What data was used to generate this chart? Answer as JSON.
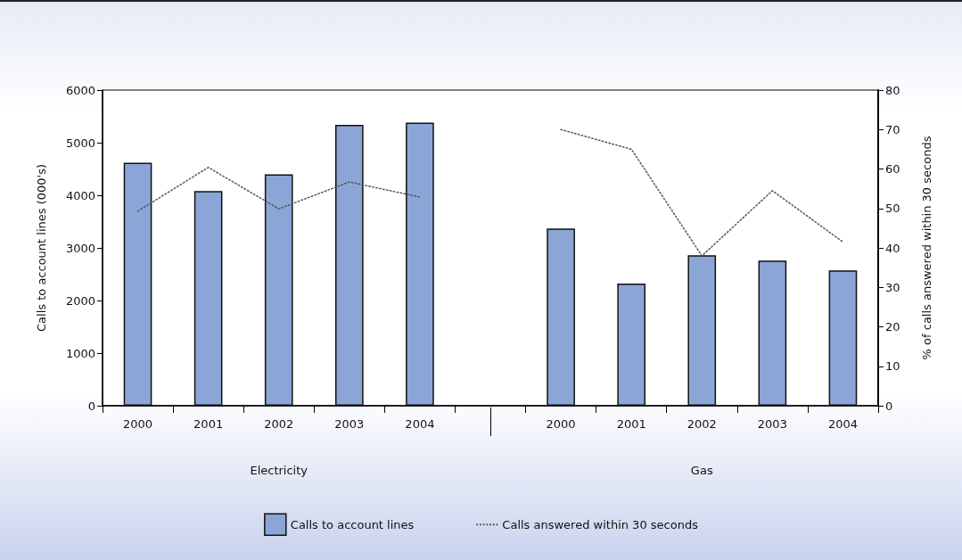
{
  "chart_data": {
    "type": "bar",
    "categories": [
      "2000",
      "2001",
      "2002",
      "2003",
      "2004",
      null,
      "2000",
      "2001",
      "2002",
      "2003",
      "2004"
    ],
    "series": [
      {
        "name": "Calls to account lines",
        "color": "#8ba6d6",
        "values": [
          4620,
          4080,
          4400,
          5340,
          5380,
          null,
          3370,
          2320,
          2860,
          2760,
          2570
        ]
      },
      {
        "name": "Calls answered within 30 seconds",
        "type": "line",
        "axis": "y2",
        "color": "#555555",
        "line_style": "dotted",
        "marker": "none",
        "values": [
          49.3,
          60.4,
          49.9,
          56.7,
          52.9,
          null,
          70,
          65,
          38,
          54.5,
          41.5
        ]
      }
    ],
    "ylabel": "Calls to account lines (000's)",
    "y2label": "% of calls answered within 30 seconds",
    "ylim": [
      0,
      6000
    ],
    "yticks": [
      0,
      1000,
      2000,
      3000,
      4000,
      5000,
      6000
    ],
    "y2lim": [
      0,
      80
    ],
    "y2ticks": [
      0,
      10,
      20,
      30,
      40,
      50,
      60,
      70,
      80
    ],
    "annotations": [
      "Electricity",
      "Gas"
    ],
    "grid": false,
    "legend": "bottom"
  }
}
